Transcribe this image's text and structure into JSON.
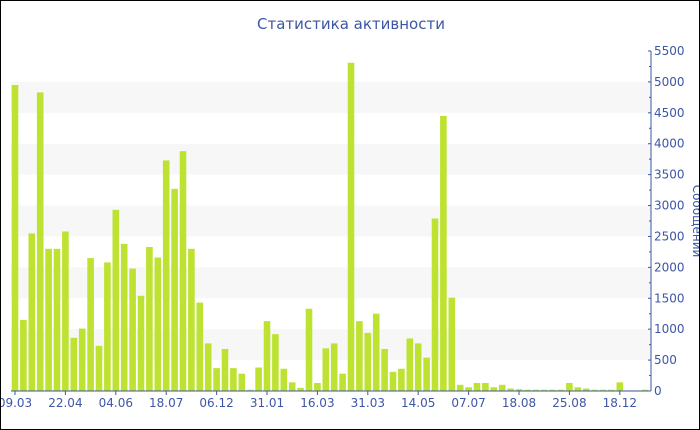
{
  "chart_data": {
    "type": "bar",
    "title": "Статистика активности",
    "ylabel": "Сообщений",
    "xlabel": "",
    "ylim": [
      0,
      5500
    ],
    "yticks": [
      0,
      500,
      1000,
      1500,
      2000,
      2500,
      3000,
      3500,
      4000,
      4500,
      5000,
      5500
    ],
    "y_axis_side": "right",
    "x_tick_labels": [
      "09.03",
      "22.04",
      "04.06",
      "18.07",
      "06.12",
      "31.01",
      "16.03",
      "31.03",
      "14.05",
      "07.07",
      "18.08",
      "25.08",
      "18.12"
    ],
    "x_tick_every_n_bars": 6,
    "grid": "alternating horizontal bands",
    "bar_color": "#bde232",
    "axis_color": "#3d56a6",
    "values": [
      4950,
      1150,
      2550,
      4830,
      2300,
      2300,
      2580,
      860,
      1010,
      2150,
      730,
      2080,
      2930,
      2380,
      1980,
      1540,
      2330,
      2160,
      3730,
      3270,
      3880,
      2300,
      1430,
      770,
      370,
      680,
      370,
      280,
      20,
      380,
      1130,
      920,
      360,
      140,
      50,
      1330,
      130,
      690,
      770,
      280,
      5310,
      1130,
      940,
      1250,
      680,
      310,
      360,
      850,
      770,
      540,
      2790,
      4450,
      1510,
      100,
      60,
      130,
      130,
      60,
      100,
      40,
      30,
      20,
      20,
      20,
      20,
      20,
      130,
      60,
      40,
      20,
      20,
      20,
      140,
      10,
      10,
      20
    ]
  }
}
